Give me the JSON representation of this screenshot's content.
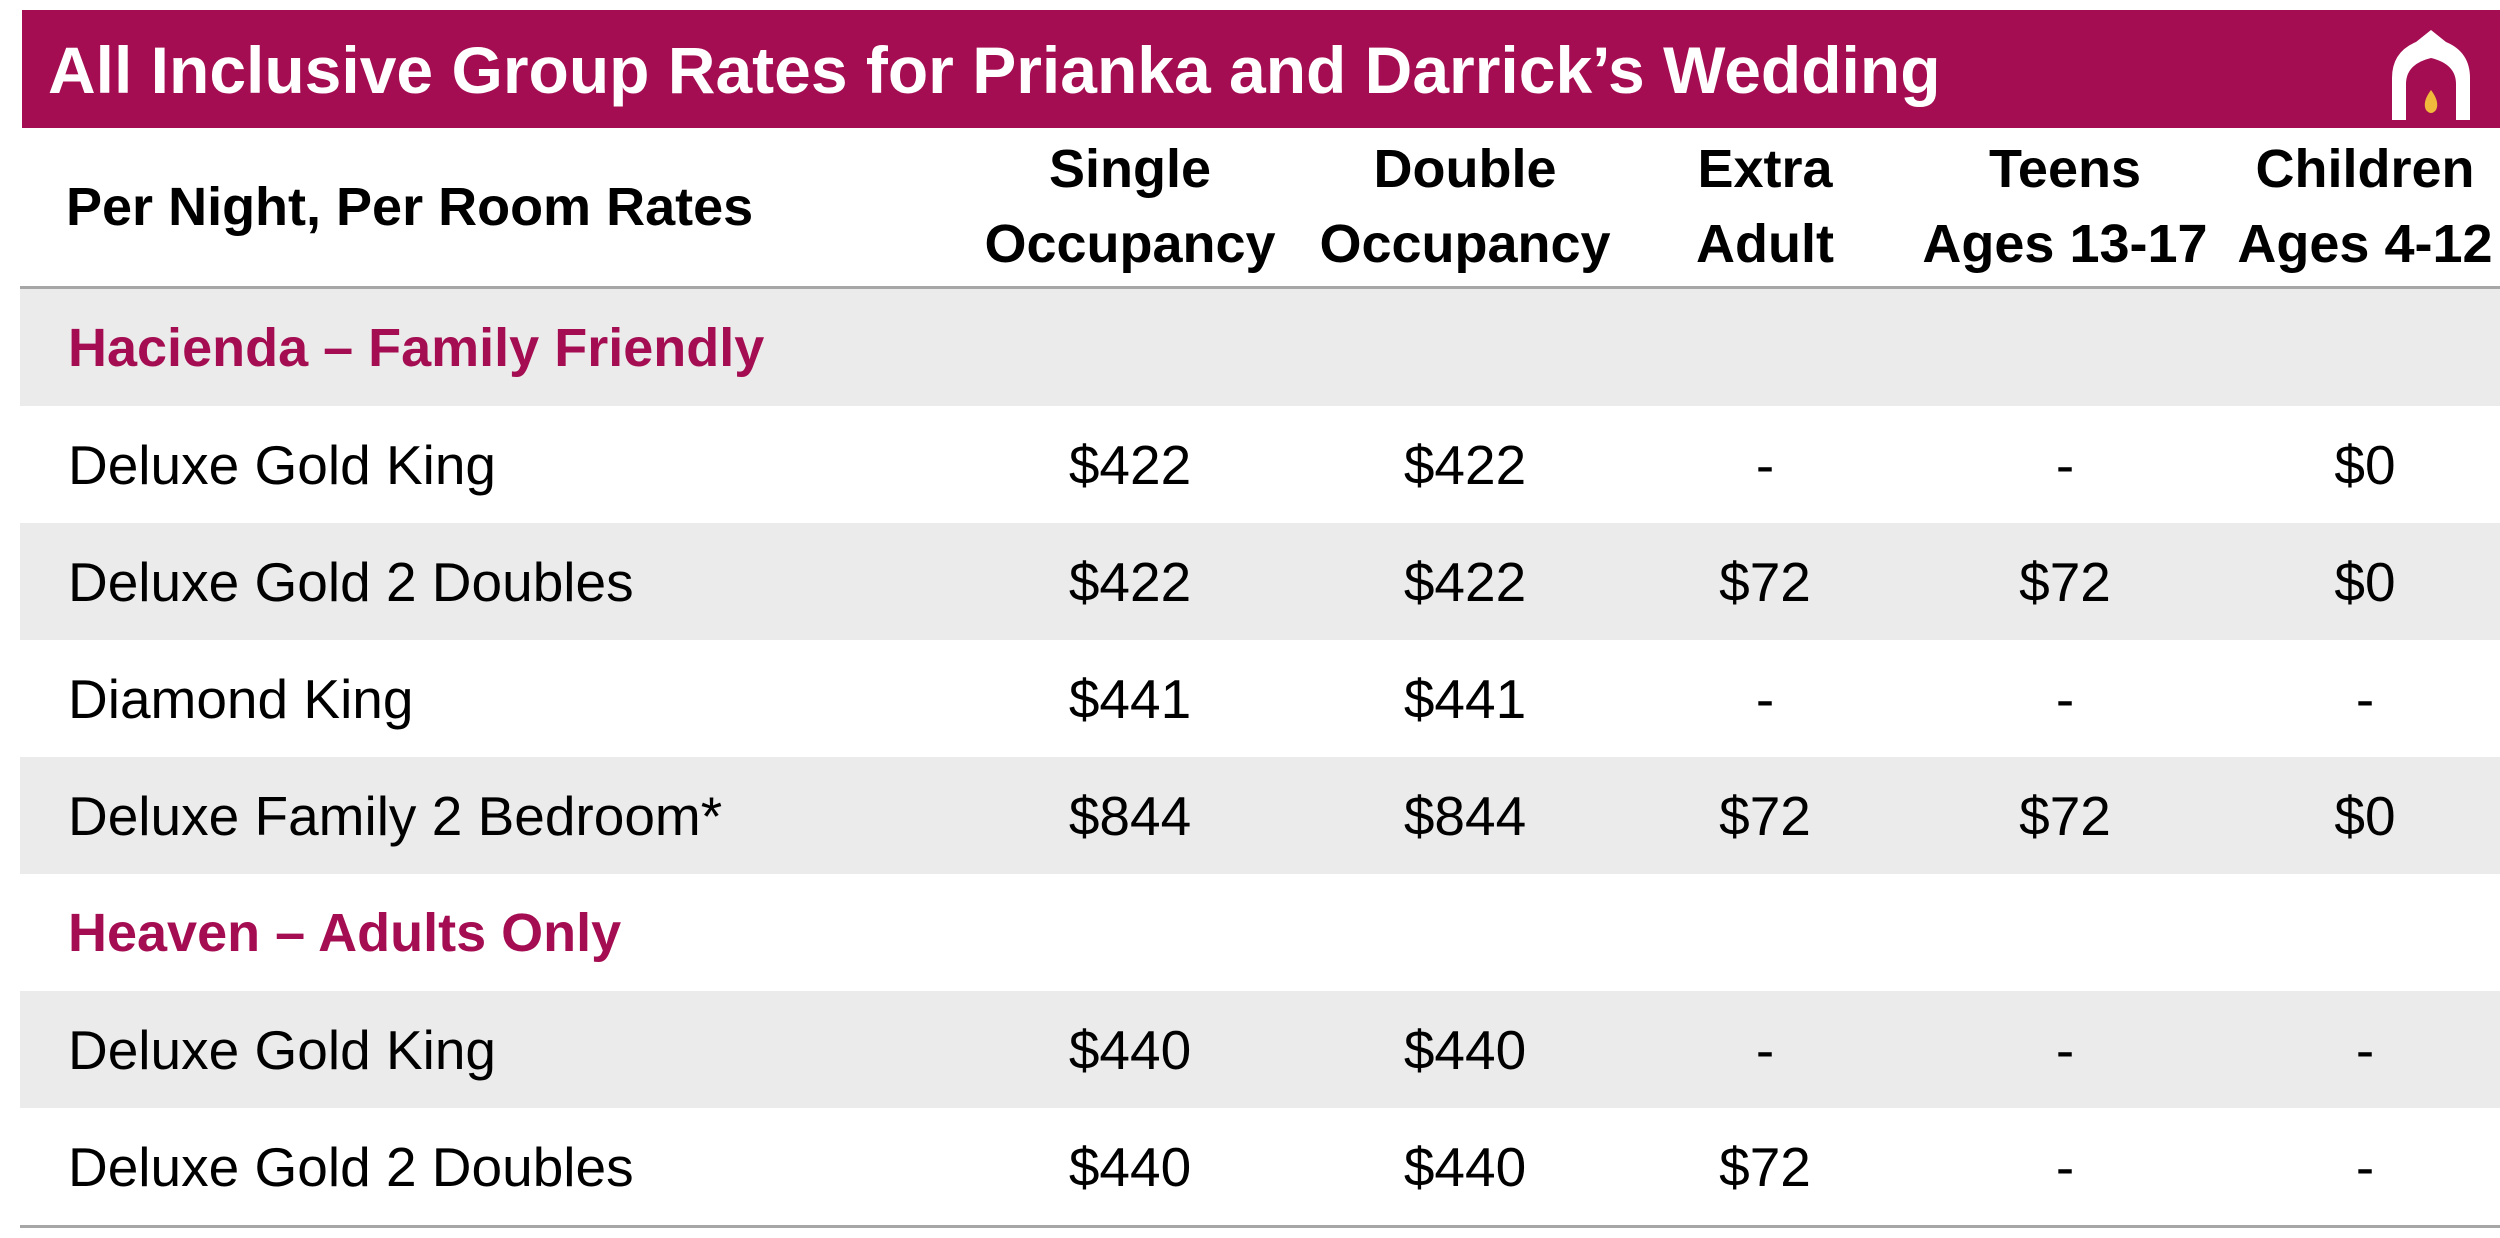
{
  "title": "All Inclusive Group Rates for Prianka and Darrick’s Wedding",
  "colors": {
    "brand": "#a50d52",
    "row_shade": "#ebebeb",
    "rule": "#a6a6a6",
    "logo_flame": "#f0b93c"
  },
  "logo": {
    "icon": "arch-flame-logo"
  },
  "columns": {
    "label": "Per Night, Per Room Rates",
    "single": [
      "Single",
      "Occupancy"
    ],
    "double": [
      "Double",
      "Occupancy"
    ],
    "extra_adult": [
      "Extra",
      "Adult"
    ],
    "teens": [
      "Teens",
      "Ages 13-17"
    ],
    "children": [
      "Children",
      "Ages 4-12"
    ]
  },
  "sections": [
    {
      "name": "Hacienda – Family Friendly",
      "rows": [
        {
          "room": "Deluxe Gold King",
          "single": "$422",
          "double": "$422",
          "extra_adult": "-",
          "teens": "-",
          "children": "$0"
        },
        {
          "room": "Deluxe Gold 2 Doubles",
          "single": "$422",
          "double": "$422",
          "extra_adult": "$72",
          "teens": "$72",
          "children": "$0"
        },
        {
          "room": "Diamond King",
          "single": "$441",
          "double": "$441",
          "extra_adult": "-",
          "teens": "-",
          "children": "-"
        },
        {
          "room": "Deluxe Family 2 Bedroom*",
          "single": "$844",
          "double": "$844",
          "extra_adult": "$72",
          "teens": "$72",
          "children": "$0"
        }
      ]
    },
    {
      "name": "Heaven – Adults Only",
      "rows": [
        {
          "room": "Deluxe Gold King",
          "single": "$440",
          "double": "$440",
          "extra_adult": "-",
          "teens": "-",
          "children": "-"
        },
        {
          "room": "Deluxe Gold 2 Doubles",
          "single": "$440",
          "double": "$440",
          "extra_adult": "$72",
          "teens": "-",
          "children": "-"
        }
      ]
    }
  ]
}
